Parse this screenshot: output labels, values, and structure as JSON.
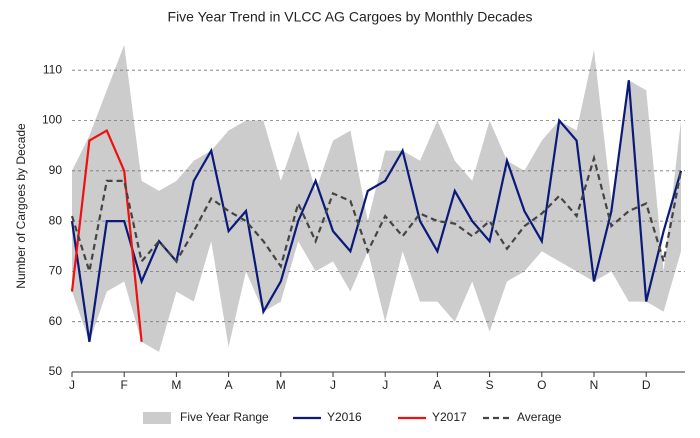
{
  "chart_data": {
    "type": "line",
    "title": "Five Year Trend in VLCC AG Cargoes by Monthly Decades",
    "y_label": "Number of Cargoes by Decade",
    "categories": [
      "J",
      null,
      null,
      "F",
      null,
      null,
      "M",
      null,
      null,
      "A",
      null,
      null,
      "M",
      null,
      null,
      "J",
      null,
      null,
      "J",
      null,
      null,
      "A",
      null,
      null,
      "S",
      null,
      null,
      "O",
      null,
      null,
      "N",
      null,
      null,
      "D",
      null,
      null
    ],
    "ylim": [
      50,
      116
    ],
    "yticks": [
      50,
      60,
      70,
      80,
      90,
      100,
      110
    ],
    "grid": true,
    "legend": "bottom",
    "range": {
      "name": "Five Year Range",
      "color": "#cccccc",
      "upper": [
        90,
        97,
        106,
        115,
        88,
        86,
        88,
        92,
        94,
        98,
        100,
        100,
        88,
        98,
        86,
        96,
        98,
        80,
        94,
        94,
        92,
        100,
        92,
        88,
        100,
        92,
        90,
        96,
        100,
        98,
        114,
        84,
        108,
        106,
        70,
        100
      ],
      "lower": [
        66,
        56,
        66,
        68,
        56,
        54,
        66,
        64,
        76,
        55,
        70,
        62,
        64,
        76,
        70,
        72,
        66,
        74,
        60,
        74,
        64,
        64,
        60,
        68,
        58,
        68,
        70,
        74,
        72,
        70,
        68,
        70,
        64,
        64,
        62,
        74
      ]
    },
    "series": [
      {
        "name": "Y2016",
        "color": "#0a1a7a",
        "dash": false,
        "values": [
          80,
          56,
          80,
          80,
          68,
          76,
          72,
          88,
          94,
          78,
          82,
          62,
          68,
          80,
          88,
          78,
          74,
          86,
          88,
          94,
          80,
          74,
          86,
          80,
          76,
          92,
          82,
          76,
          100,
          96,
          68,
          82,
          108,
          64,
          78,
          90
        ]
      },
      {
        "name": "Y2017",
        "color": "#ee1111",
        "dash": false,
        "values": [
          66,
          96,
          98,
          90,
          56,
          null,
          null,
          null,
          null,
          null,
          null,
          null,
          null,
          null,
          null,
          null,
          null,
          null,
          null,
          null,
          null,
          null,
          null,
          null,
          null,
          null,
          null,
          null,
          null,
          null,
          null,
          null,
          null,
          null,
          null,
          null
        ]
      },
      {
        "name": "Average",
        "color": "#444444",
        "dash": true,
        "values": [
          81,
          70,
          88,
          88,
          72,
          76,
          72,
          78,
          84.5,
          82,
          80,
          76,
          71,
          83.5,
          76,
          85.5,
          84,
          74,
          81,
          77,
          81.5,
          80,
          79.5,
          77,
          80,
          74.5,
          79,
          81.5,
          85,
          81,
          92.5,
          79,
          82,
          83.5,
          72,
          90
        ]
      }
    ]
  }
}
